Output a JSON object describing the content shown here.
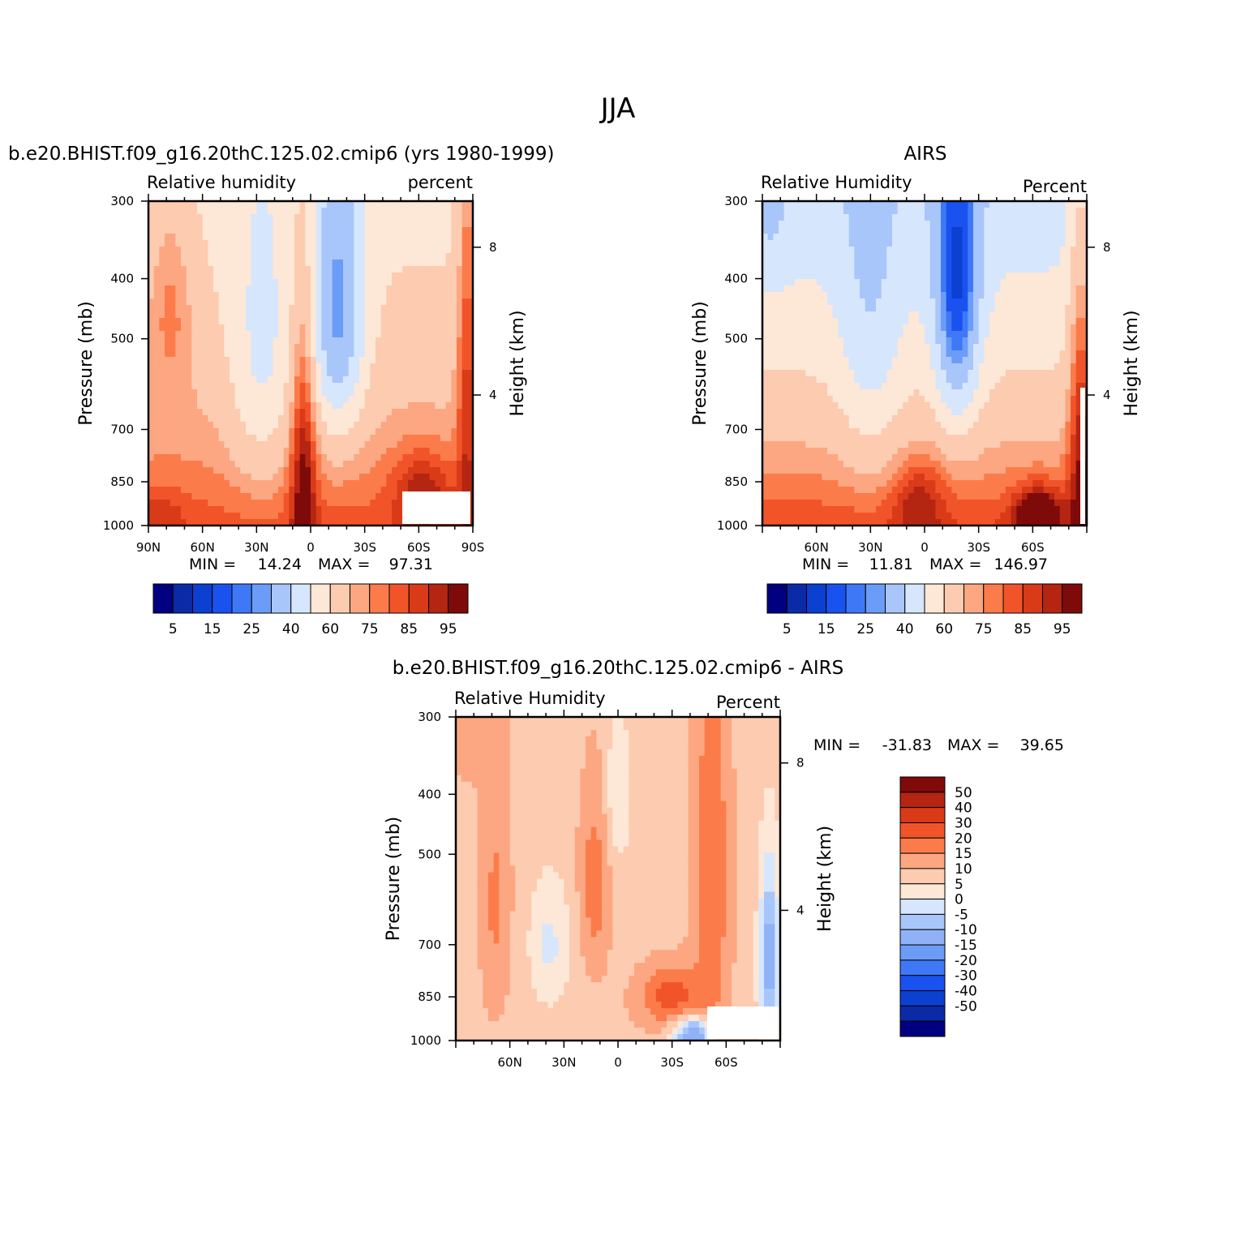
{
  "figure": {
    "title": "JJA"
  },
  "colors": {
    "rh_levels": [
      "#000080",
      "#0a2aa6",
      "#0b40d0",
      "#1a52f0",
      "#3f78f7",
      "#6b9cf7",
      "#a8c6fa",
      "#d6e6fd",
      "#fde7d6",
      "#fccbb0",
      "#fca782",
      "#fb7c4a",
      "#f2542a",
      "#d93a18",
      "#b42512",
      "#7f0a0a"
    ],
    "diff_levels": [
      "#7f0a0a",
      "#b42512",
      "#d93a18",
      "#f2542a",
      "#fb7c4a",
      "#fca782",
      "#fccbb0",
      "#fde7d6",
      "#d6e6fd",
      "#a8c6fa",
      "#8fb2f7",
      "#6b9cf7",
      "#3f78f7",
      "#1a52f0",
      "#0b40d0",
      "#0a2aa6",
      "#000080"
    ]
  },
  "chart_data": [
    {
      "type": "heatmap",
      "title": "b.e20.BHIST.f09_g16.20thC.125.02.cmip6 (yrs 1980-1999)",
      "left_label": "Relative humidity",
      "right_label": "percent",
      "ylabel": "Pressure (mb)",
      "ylabel_right": "Height (km)",
      "xtick_labels": [
        "90N",
        "60N",
        "30N",
        "0",
        "30S",
        "60S",
        "90S"
      ],
      "ytick_labels": [
        "300",
        "400",
        "500",
        "700",
        "850",
        "1000"
      ],
      "height_ticks": [
        "8",
        "4"
      ],
      "x_range": [
        90,
        -90
      ],
      "y_range_mb": [
        1000,
        300
      ],
      "min_label": "MIN =",
      "min_value": "14.24",
      "max_label": "MAX =",
      "max_value": "97.31",
      "colorbar_labels": [
        "5",
        "15",
        "25",
        "40",
        "60",
        "75",
        "85",
        "95"
      ],
      "field_min": 14.24,
      "field_max": 97.31
    },
    {
      "type": "heatmap",
      "title": "AIRS",
      "left_label": "Relative Humidity",
      "right_label": "Percent",
      "ylabel": "Pressure (mb)",
      "ylabel_right": "Height (km)",
      "xtick_labels": [
        "60N",
        "30N",
        "0",
        "30S",
        "60S"
      ],
      "ytick_labels": [
        "300",
        "400",
        "500",
        "700",
        "850",
        "1000"
      ],
      "height_ticks": [
        "8",
        "4"
      ],
      "x_range": [
        90,
        -90
      ],
      "y_range_mb": [
        1000,
        300
      ],
      "min_label": "MIN =",
      "min_value": "11.81",
      "max_label": "MAX =",
      "max_value": "146.97",
      "colorbar_labels": [
        "5",
        "15",
        "25",
        "40",
        "60",
        "75",
        "85",
        "95"
      ],
      "field_min": 11.81,
      "field_max": 146.97
    },
    {
      "type": "heatmap",
      "title": "b.e20.BHIST.f09_g16.20thC.125.02.cmip6 - AIRS",
      "left_label": "Relative Humidity",
      "right_label": "Percent",
      "ylabel": "Pressure (mb)",
      "ylabel_right": "Height (km)",
      "xtick_labels": [
        "60N",
        "30N",
        "0",
        "30S",
        "60S"
      ],
      "ytick_labels": [
        "300",
        "400",
        "500",
        "700",
        "850",
        "1000"
      ],
      "height_ticks": [
        "8",
        "4"
      ],
      "x_range": [
        90,
        -90
      ],
      "y_range_mb": [
        1000,
        300
      ],
      "min_label": "MIN =",
      "min_value": "-31.83",
      "max_label": "MAX =",
      "max_value": "39.65",
      "colorbar_labels": [
        "50",
        "40",
        "30",
        "20",
        "15",
        "10",
        "5",
        "0",
        "-5",
        "-10",
        "-15",
        "-20",
        "-30",
        "-40",
        "-50"
      ],
      "field_min": -31.83,
      "field_max": 39.65
    }
  ]
}
